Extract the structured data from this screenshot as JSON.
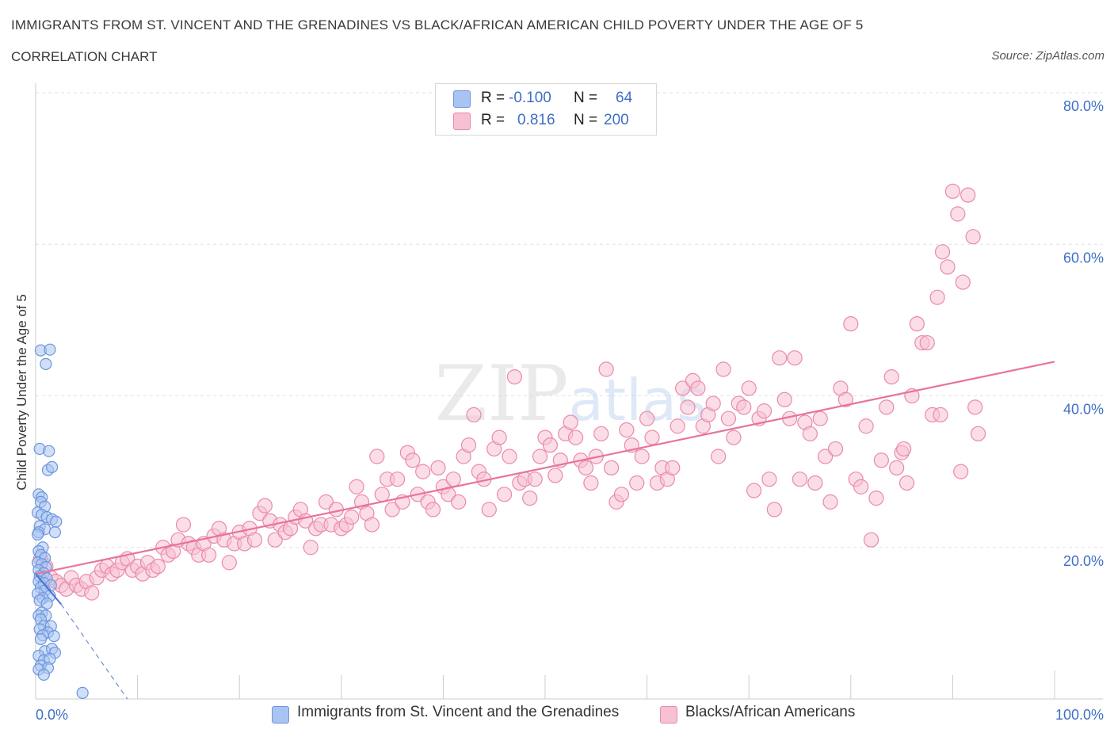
{
  "header": {
    "title": "IMMIGRANTS FROM ST. VINCENT AND THE GRENADINES VS BLACK/AFRICAN AMERICAN CHILD POVERTY UNDER THE AGE OF 5",
    "subtitle": "CORRELATION CHART",
    "source": "Source: ZipAtlas.com"
  },
  "legend": {
    "rows": [
      {
        "r_label": "R =",
        "r_value": "-0.100",
        "n_label": "N =",
        "n_value": "64"
      },
      {
        "r_label": "R =",
        "r_value": "0.816",
        "n_label": "N =",
        "n_value": "200"
      }
    ],
    "bottom": [
      "Immigrants from St. Vincent and the Grenadines",
      "Blacks/African Americans"
    ]
  },
  "colors": {
    "blue_fill": "#a9c4f2",
    "blue_stroke": "#6e95dc",
    "pink_fill": "#f7c1d3",
    "pink_stroke": "#e98aa9",
    "pink_line": "#e8739a",
    "blue_line": "#4a6fd0",
    "axis_text": "#3f6fc4",
    "grid": "#e2e2e2"
  },
  "chart_data": {
    "type": "scatter",
    "title": "IMMIGRANTS FROM ST. VINCENT AND THE GRENADINES VS BLACK/AFRICAN AMERICAN CHILD POVERTY UNDER THE AGE OF 5",
    "xlabel": "",
    "ylabel": "Child Poverty Under the Age of 5",
    "xlim": [
      0,
      100
    ],
    "ylim": [
      0,
      80
    ],
    "x_tick_labels": [
      "0.0%",
      "100.0%"
    ],
    "y_ticks": [
      20,
      40,
      60,
      80
    ],
    "y_tick_labels": [
      "20.0%",
      "40.0%",
      "60.0%",
      "80.0%"
    ],
    "grid": true,
    "watermark": "ZIPatlas",
    "series": [
      {
        "name": "Immigrants from St. Vincent and the Grenadines",
        "R": -0.1,
        "N": 64,
        "trend": [
          [
            0,
            16.5
          ],
          [
            2.5,
            12.5
          ]
        ],
        "trend_extension": [
          [
            2.5,
            12.5
          ],
          [
            9,
            0
          ]
        ],
        "points": [
          [
            0.5,
            46.0
          ],
          [
            1.4,
            46.1
          ],
          [
            1.0,
            44.2
          ],
          [
            0.4,
            33.0
          ],
          [
            1.3,
            32.7
          ],
          [
            1.2,
            30.2
          ],
          [
            1.6,
            30.6
          ],
          [
            0.3,
            27.0
          ],
          [
            0.6,
            26.6
          ],
          [
            0.5,
            26.0
          ],
          [
            0.9,
            25.4
          ],
          [
            0.2,
            24.6
          ],
          [
            0.6,
            24.3
          ],
          [
            1.1,
            24.0
          ],
          [
            1.6,
            23.7
          ],
          [
            2.0,
            23.4
          ],
          [
            0.4,
            22.8
          ],
          [
            0.9,
            22.4
          ],
          [
            0.3,
            22.0
          ],
          [
            1.9,
            22.0
          ],
          [
            0.2,
            21.7
          ],
          [
            0.7,
            20.0
          ],
          [
            0.3,
            19.5
          ],
          [
            0.5,
            19.0
          ],
          [
            0.9,
            18.6
          ],
          [
            0.2,
            18.0
          ],
          [
            0.6,
            17.8
          ],
          [
            1.0,
            17.4
          ],
          [
            0.3,
            17.0
          ],
          [
            0.8,
            16.6
          ],
          [
            0.4,
            16.2
          ],
          [
            1.1,
            15.9
          ],
          [
            0.3,
            15.5
          ],
          [
            0.8,
            15.3
          ],
          [
            1.5,
            15.0
          ],
          [
            0.5,
            14.7
          ],
          [
            0.9,
            14.3
          ],
          [
            0.2,
            13.9
          ],
          [
            1.4,
            13.6
          ],
          [
            0.7,
            13.3
          ],
          [
            0.4,
            13.0
          ],
          [
            1.1,
            12.6
          ],
          [
            0.6,
            11.4
          ],
          [
            0.3,
            11.0
          ],
          [
            1.0,
            11.0
          ],
          [
            0.5,
            10.5
          ],
          [
            0.8,
            9.6
          ],
          [
            1.5,
            9.6
          ],
          [
            0.4,
            9.2
          ],
          [
            1.2,
            8.8
          ],
          [
            0.7,
            8.4
          ],
          [
            1.8,
            8.3
          ],
          [
            0.5,
            7.9
          ],
          [
            0.9,
            6.3
          ],
          [
            1.6,
            6.6
          ],
          [
            1.9,
            6.1
          ],
          [
            0.3,
            5.7
          ],
          [
            0.8,
            5.1
          ],
          [
            1.4,
            5.3
          ],
          [
            0.5,
            4.4
          ],
          [
            1.2,
            4.1
          ],
          [
            0.3,
            3.9
          ],
          [
            0.8,
            3.2
          ],
          [
            4.6,
            0.8
          ]
        ]
      },
      {
        "name": "Blacks/African Americans",
        "R": 0.816,
        "N": 200,
        "trend": [
          [
            0,
            16.5
          ],
          [
            100,
            44.5
          ]
        ],
        "points": [
          [
            0.5,
            18.5
          ],
          [
            1.0,
            17.5
          ],
          [
            1.5,
            16.0
          ],
          [
            2.0,
            15.5
          ],
          [
            2.5,
            15.0
          ],
          [
            3.0,
            14.5
          ],
          [
            3.5,
            16.0
          ],
          [
            4.0,
            15.0
          ],
          [
            4.5,
            14.5
          ],
          [
            5.0,
            15.5
          ],
          [
            5.5,
            14.0
          ],
          [
            6.0,
            16.0
          ],
          [
            6.5,
            17.0
          ],
          [
            7.0,
            17.5
          ],
          [
            7.5,
            16.5
          ],
          [
            8.0,
            17.0
          ],
          [
            8.5,
            18.0
          ],
          [
            9.0,
            18.5
          ],
          [
            9.5,
            17.0
          ],
          [
            10.0,
            17.5
          ],
          [
            10.5,
            16.5
          ],
          [
            11.0,
            18.0
          ],
          [
            11.5,
            17.0
          ],
          [
            12.0,
            17.5
          ],
          [
            12.5,
            20.0
          ],
          [
            13.0,
            19.0
          ],
          [
            13.5,
            19.5
          ],
          [
            14.0,
            21.0
          ],
          [
            14.5,
            23.0
          ],
          [
            15.0,
            20.5
          ],
          [
            15.5,
            20.0
          ],
          [
            16.0,
            19.0
          ],
          [
            16.5,
            20.5
          ],
          [
            17.0,
            19.0
          ],
          [
            17.5,
            21.5
          ],
          [
            18.0,
            22.5
          ],
          [
            18.5,
            21.0
          ],
          [
            19.0,
            18.0
          ],
          [
            19.5,
            20.5
          ],
          [
            20.0,
            22.0
          ],
          [
            20.5,
            20.5
          ],
          [
            21.0,
            22.5
          ],
          [
            21.5,
            21.0
          ],
          [
            22.0,
            24.5
          ],
          [
            22.5,
            25.5
          ],
          [
            23.0,
            23.5
          ],
          [
            23.5,
            21.0
          ],
          [
            24.0,
            23.0
          ],
          [
            24.5,
            22.0
          ],
          [
            25.0,
            22.5
          ],
          [
            25.5,
            24.0
          ],
          [
            26.0,
            25.0
          ],
          [
            26.5,
            23.5
          ],
          [
            27.0,
            20.0
          ],
          [
            27.5,
            22.5
          ],
          [
            28.0,
            23.0
          ],
          [
            28.5,
            26.0
          ],
          [
            29.0,
            23.0
          ],
          [
            29.5,
            25.0
          ],
          [
            30.0,
            22.5
          ],
          [
            30.5,
            23.0
          ],
          [
            31.0,
            24.0
          ],
          [
            31.5,
            28.0
          ],
          [
            32.0,
            26.0
          ],
          [
            32.5,
            24.5
          ],
          [
            33.0,
            23.0
          ],
          [
            33.5,
            32.0
          ],
          [
            34.0,
            27.0
          ],
          [
            34.5,
            29.0
          ],
          [
            35.0,
            25.0
          ],
          [
            35.5,
            29.0
          ],
          [
            36.0,
            26.0
          ],
          [
            36.5,
            32.5
          ],
          [
            37.0,
            31.5
          ],
          [
            37.5,
            27.0
          ],
          [
            38.0,
            30.0
          ],
          [
            38.5,
            26.0
          ],
          [
            39.0,
            25.0
          ],
          [
            39.5,
            30.5
          ],
          [
            40.0,
            28.0
          ],
          [
            40.5,
            27.0
          ],
          [
            41.0,
            29.0
          ],
          [
            41.5,
            26.0
          ],
          [
            42.0,
            32.0
          ],
          [
            42.5,
            33.5
          ],
          [
            43.0,
            37.5
          ],
          [
            43.5,
            30.0
          ],
          [
            44.0,
            29.0
          ],
          [
            44.5,
            25.0
          ],
          [
            45.0,
            33.0
          ],
          [
            45.5,
            34.5
          ],
          [
            46.0,
            27.0
          ],
          [
            46.5,
            32.0
          ],
          [
            47.0,
            42.5
          ],
          [
            47.5,
            28.5
          ],
          [
            48.0,
            29.0
          ],
          [
            48.5,
            26.5
          ],
          [
            49.0,
            29.0
          ],
          [
            49.5,
            32.0
          ],
          [
            50.0,
            34.5
          ],
          [
            50.5,
            33.5
          ],
          [
            51.0,
            29.5
          ],
          [
            51.5,
            31.5
          ],
          [
            52.0,
            35.0
          ],
          [
            52.5,
            36.5
          ],
          [
            53.0,
            34.5
          ],
          [
            53.5,
            31.5
          ],
          [
            54.0,
            30.5
          ],
          [
            54.5,
            28.5
          ],
          [
            55.0,
            32.0
          ],
          [
            55.5,
            35.0
          ],
          [
            56.0,
            43.5
          ],
          [
            56.5,
            30.5
          ],
          [
            57.0,
            26.0
          ],
          [
            57.5,
            27.0
          ],
          [
            58.0,
            35.5
          ],
          [
            58.5,
            33.5
          ],
          [
            59.0,
            28.5
          ],
          [
            59.5,
            32.0
          ],
          [
            60.0,
            37.0
          ],
          [
            60.5,
            34.5
          ],
          [
            61.0,
            28.5
          ],
          [
            61.5,
            30.5
          ],
          [
            62.0,
            29.0
          ],
          [
            62.5,
            30.5
          ],
          [
            63.0,
            36.0
          ],
          [
            63.5,
            41.0
          ],
          [
            64.0,
            38.5
          ],
          [
            64.5,
            42.0
          ],
          [
            65.0,
            41.0
          ],
          [
            65.5,
            36.0
          ],
          [
            66.0,
            37.5
          ],
          [
            66.5,
            39.0
          ],
          [
            67.0,
            32.0
          ],
          [
            67.5,
            43.5
          ],
          [
            68.0,
            37.0
          ],
          [
            68.5,
            34.5
          ],
          [
            69.0,
            39.0
          ],
          [
            69.5,
            38.5
          ],
          [
            70.0,
            41.0
          ],
          [
            70.5,
            27.5
          ],
          [
            71.0,
            37.0
          ],
          [
            71.5,
            38.0
          ],
          [
            72.0,
            29.0
          ],
          [
            72.5,
            25.0
          ],
          [
            73.0,
            45.0
          ],
          [
            73.5,
            39.5
          ],
          [
            74.0,
            37.0
          ],
          [
            74.5,
            45.0
          ],
          [
            75.0,
            29.0
          ],
          [
            75.5,
            36.5
          ],
          [
            76.0,
            35.0
          ],
          [
            76.5,
            28.5
          ],
          [
            77.0,
            37.0
          ],
          [
            77.5,
            32.0
          ],
          [
            78.0,
            26.0
          ],
          [
            78.5,
            33.0
          ],
          [
            79.0,
            41.0
          ],
          [
            79.5,
            39.5
          ],
          [
            80.0,
            49.5
          ],
          [
            80.5,
            29.0
          ],
          [
            81.0,
            28.0
          ],
          [
            81.5,
            36.0
          ],
          [
            82.0,
            21.0
          ],
          [
            82.5,
            26.5
          ],
          [
            83.0,
            31.5
          ],
          [
            83.5,
            38.5
          ],
          [
            84.0,
            42.5
          ],
          [
            84.5,
            30.5
          ],
          [
            85.0,
            32.5
          ],
          [
            85.5,
            28.5
          ],
          [
            86.0,
            40.0
          ],
          [
            86.5,
            49.5
          ],
          [
            87.0,
            47.0
          ],
          [
            87.5,
            47.0
          ],
          [
            88.0,
            37.5
          ],
          [
            88.5,
            53.0
          ],
          [
            89.0,
            59.0
          ],
          [
            89.5,
            57.0
          ],
          [
            90.0,
            67.0
          ],
          [
            90.5,
            64.0
          ],
          [
            91.0,
            55.0
          ],
          [
            91.5,
            66.5
          ],
          [
            92.0,
            61.0
          ],
          [
            92.5,
            35.0
          ],
          [
            88.8,
            37.5
          ],
          [
            90.8,
            30.0
          ],
          [
            92.2,
            38.5
          ],
          [
            85.2,
            33.0
          ]
        ]
      }
    ]
  }
}
